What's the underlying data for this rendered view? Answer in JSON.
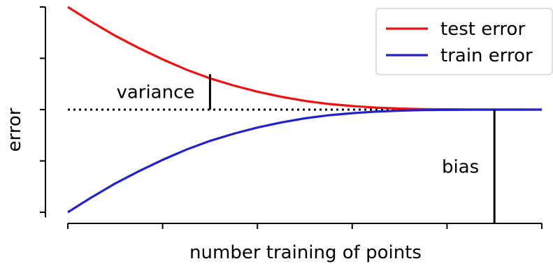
{
  "chart_data": {
    "type": "line",
    "title": "",
    "xlabel": "number training of points",
    "ylabel": "error",
    "xlim": [
      0,
      5
    ],
    "ylim": [
      -2.1,
      2.1
    ],
    "x_ticks": [
      0,
      1,
      2,
      3,
      4,
      5
    ],
    "y_ticks": [
      -2,
      -1,
      0,
      1,
      2
    ],
    "tick_labels_shown": false,
    "grid": false,
    "legend": {
      "position": "top-right",
      "entries": [
        "test error",
        "train error"
      ]
    },
    "asymptote": {
      "value": 0,
      "style": "dotted",
      "color": "#000000"
    },
    "series": [
      {
        "name": "test error",
        "color": "#ee1111",
        "x": [
          0,
          0.25,
          0.5,
          0.75,
          1,
          1.25,
          1.5,
          1.75,
          2,
          2.25,
          2.5,
          2.75,
          3,
          3.25,
          3.5,
          3.75,
          4,
          4.25,
          4.5,
          4.75,
          5
        ],
        "y": [
          2,
          1.71,
          1.44,
          1.2,
          0.98,
          0.78,
          0.61,
          0.47,
          0.35,
          0.25,
          0.17,
          0.11,
          0.07,
          0.04,
          0.02,
          0.01,
          0.005,
          0.003,
          0.002,
          0.001,
          0
        ]
      },
      {
        "name": "train error",
        "color": "#2222cc",
        "x": [
          0,
          0.25,
          0.5,
          0.75,
          1,
          1.25,
          1.5,
          1.75,
          2,
          2.25,
          2.5,
          2.75,
          3,
          3.25,
          3.5,
          3.75,
          4,
          4.25,
          4.5,
          4.75,
          5
        ],
        "y": [
          -2,
          -1.71,
          -1.44,
          -1.2,
          -0.98,
          -0.78,
          -0.61,
          -0.47,
          -0.35,
          -0.25,
          -0.17,
          -0.11,
          -0.07,
          -0.04,
          -0.02,
          -0.01,
          -0.005,
          -0.003,
          -0.002,
          -0.001,
          0
        ]
      }
    ],
    "annotations": [
      {
        "text": "variance",
        "x": 1.5,
        "y_from": 0,
        "y_to": 0.69,
        "color": "#000000"
      },
      {
        "text": "bias",
        "x": 4.5,
        "y_from": -2.2,
        "y_to": 0,
        "color": "#000000"
      }
    ]
  }
}
